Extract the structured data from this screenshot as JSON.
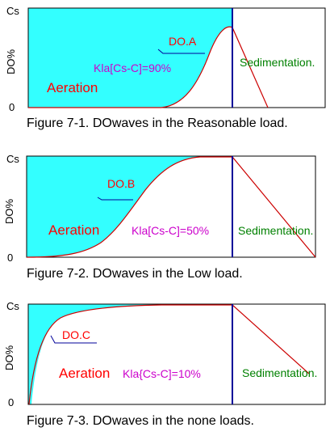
{
  "panels": [
    {
      "y_top_label": "Cs",
      "y_axis_label": "DO%",
      "y_zero_label": "0",
      "curve_label": "DO.A",
      "phase_label": "Aeration",
      "kla_label": "Kla[Cs-C]=90%",
      "sed_label": "Sedimentation.",
      "caption": "Figure 7-1. DOwaves in the Reasonable load."
    },
    {
      "y_top_label": "Cs",
      "y_axis_label": "DO%",
      "y_zero_label": "0",
      "curve_label": "DO.B",
      "phase_label": "Aeration",
      "kla_label": "Kla[Cs-C]=50%",
      "sed_label": "Sedimentation.",
      "caption": "Figure  7-2. DOwaves in the Low load."
    },
    {
      "y_top_label": "Cs",
      "y_axis_label": "DO%",
      "y_zero_label": "0",
      "curve_label": "DO.C",
      "phase_label": "Aeration",
      "kla_label": "Kla{Cs-C]=10%",
      "sed_label": "Sedimentation.",
      "caption": "Figure  7-3. DOwaves in the none loads."
    }
  ],
  "colors": {
    "fill": "#33ffff",
    "curve": "#cc0000",
    "divider": "#000099",
    "frame": "#000000"
  }
}
